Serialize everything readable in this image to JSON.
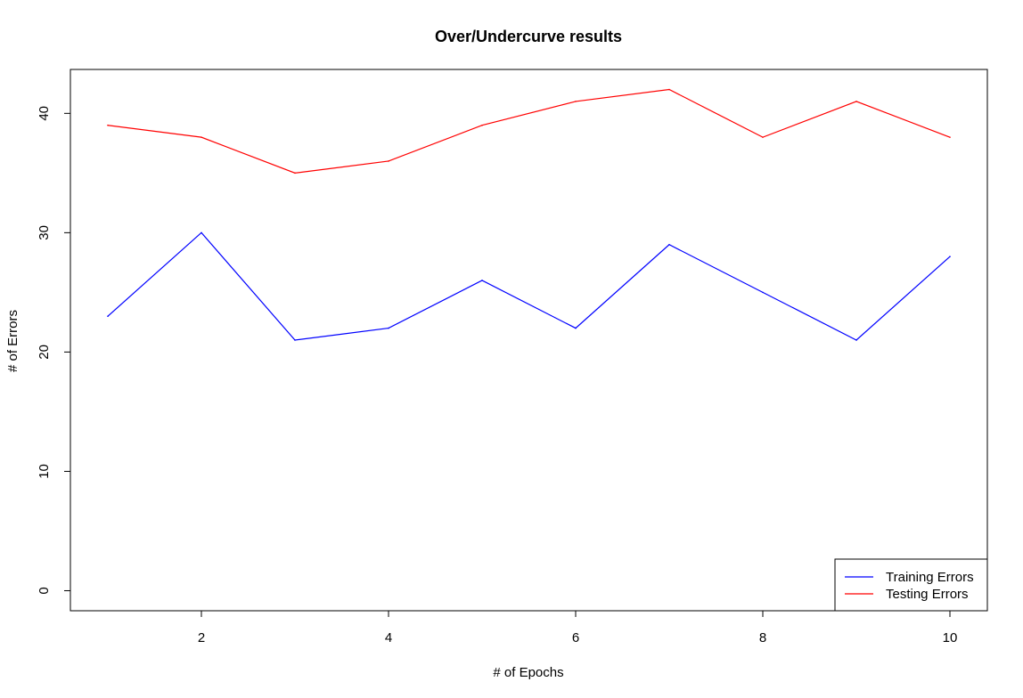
{
  "chart_data": {
    "type": "line",
    "title": "Over/Undercurve results",
    "xlabel": "# of Epochs",
    "ylabel": "# of Errors",
    "x": [
      1,
      2,
      3,
      4,
      5,
      6,
      7,
      8,
      9,
      10
    ],
    "xlim": [
      0.6,
      10.4
    ],
    "ylim": [
      -1.68,
      43.68
    ],
    "xticks": [
      2,
      4,
      6,
      8,
      10
    ],
    "yticks": [
      0,
      10,
      20,
      30,
      40
    ],
    "grid": false,
    "legend_position": "bottom-right",
    "series": [
      {
        "name": "Training Errors",
        "color": "#0000ff",
        "values": [
          23,
          30,
          21,
          22,
          26,
          22,
          29,
          25,
          21,
          28
        ]
      },
      {
        "name": "Testing Errors",
        "color": "#ff0000",
        "values": [
          39,
          38,
          35,
          36,
          39,
          41,
          42,
          38,
          41,
          38
        ]
      }
    ]
  }
}
